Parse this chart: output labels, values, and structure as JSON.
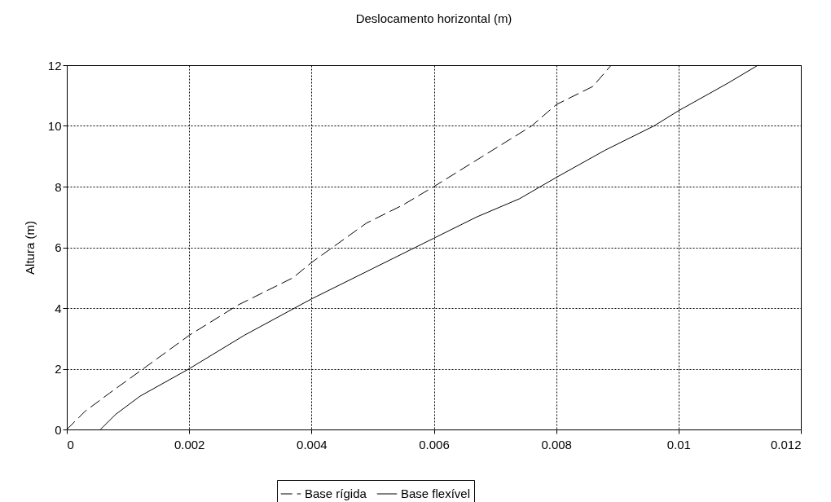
{
  "chart_data": {
    "type": "line",
    "title": "Deslocamento horizontal (m)",
    "ylabel": "Altura (m)",
    "xlim": [
      0,
      0.012
    ],
    "xticks": [
      0,
      0.002,
      0.004,
      0.006,
      0.008,
      0.01,
      0.012
    ],
    "ylim": [
      0,
      12
    ],
    "yticks": [
      0,
      2,
      4,
      6,
      8,
      10,
      12
    ],
    "grid": true,
    "legend": "bottom",
    "marker": "none",
    "series": [
      {
        "name": "Base rígida",
        "color": "#000000",
        "line_style": "dashed",
        "x": [
          0,
          0.0003,
          0.0007,
          0.00125,
          0.002,
          0.0028,
          0.0037,
          0.004,
          0.0049,
          0.0055,
          0.006,
          0.0068,
          0.0076,
          0.008,
          0.0086,
          0.0089
        ],
        "values": [
          0,
          0.6,
          1.2,
          2,
          3.1,
          4.1,
          5,
          5.5,
          6.8,
          7.4,
          8,
          9,
          10,
          10.7,
          11.3,
          12
        ]
      },
      {
        "name": "Base flexível",
        "color": "#000000",
        "line_style": "solid",
        "x": [
          0.00055,
          0.0008,
          0.0012,
          0.002,
          0.0029,
          0.004,
          0.005,
          0.006,
          0.0067,
          0.0074,
          0.008,
          0.0088,
          0.0096,
          0.01,
          0.0108,
          0.0113
        ],
        "values": [
          0,
          0.5,
          1.1,
          2,
          3.1,
          4.3,
          5.3,
          6.3,
          7,
          7.6,
          8.3,
          9.2,
          10,
          10.5,
          11.4,
          12
        ]
      }
    ]
  }
}
